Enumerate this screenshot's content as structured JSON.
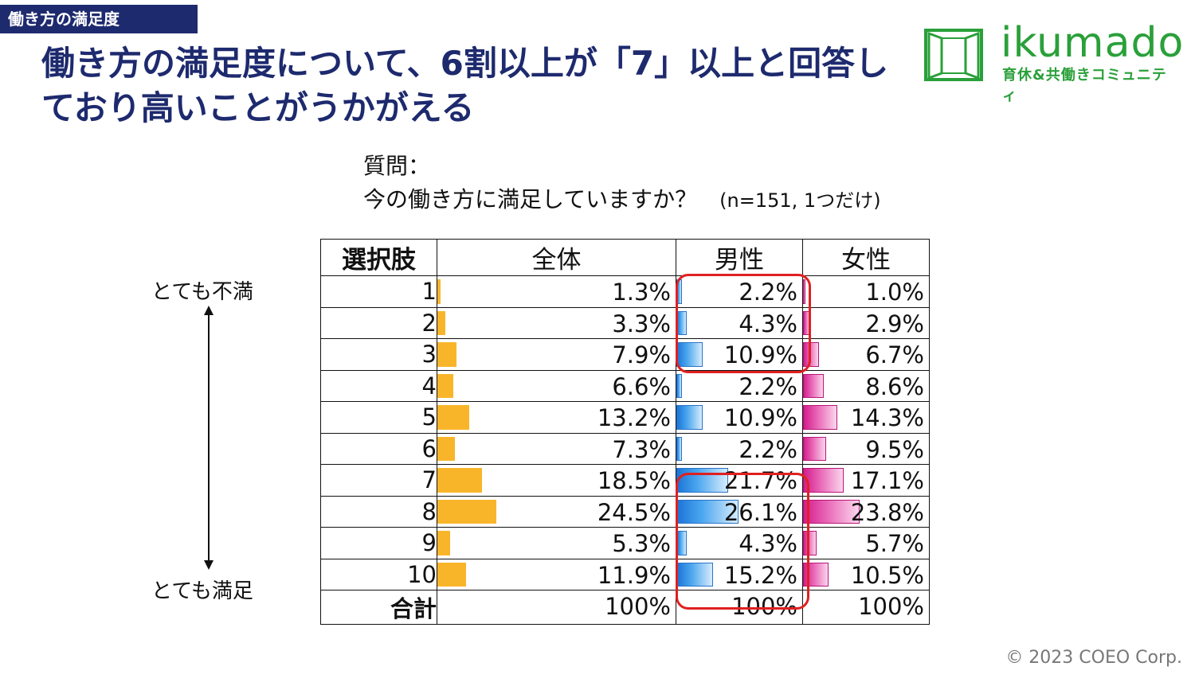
{
  "section_tag": "働き方の満足度",
  "headline": "働き方の満足度について、6割以上が「7」以上と回答しており高いことがうかがえる",
  "logo": {
    "word": "ikumado",
    "subtitle": "育休&共働きコミュニティ"
  },
  "question": {
    "label": "質問：",
    "text": "今の働き方に満足していますか？",
    "note": "(n=151, 1つだけ)"
  },
  "scale": {
    "top_label": "とても不満",
    "bottom_label": "とても満足"
  },
  "table": {
    "headers": {
      "choice": "選択肢",
      "all": "全体",
      "male": "男性",
      "female": "女性"
    },
    "rows": [
      {
        "choice": "1",
        "all": "1.3%",
        "male": "2.2%",
        "female": "1.0%",
        "all_v": 1.3,
        "male_v": 2.2,
        "female_v": 1.0
      },
      {
        "choice": "2",
        "all": "3.3%",
        "male": "4.3%",
        "female": "2.9%",
        "all_v": 3.3,
        "male_v": 4.3,
        "female_v": 2.9
      },
      {
        "choice": "3",
        "all": "7.9%",
        "male": "10.9%",
        "female": "6.7%",
        "all_v": 7.9,
        "male_v": 10.9,
        "female_v": 6.7
      },
      {
        "choice": "4",
        "all": "6.6%",
        "male": "2.2%",
        "female": "8.6%",
        "all_v": 6.6,
        "male_v": 2.2,
        "female_v": 8.6
      },
      {
        "choice": "5",
        "all": "13.2%",
        "male": "10.9%",
        "female": "14.3%",
        "all_v": 13.2,
        "male_v": 10.9,
        "female_v": 14.3
      },
      {
        "choice": "6",
        "all": "7.3%",
        "male": "2.2%",
        "female": "9.5%",
        "all_v": 7.3,
        "male_v": 2.2,
        "female_v": 9.5
      },
      {
        "choice": "7",
        "all": "18.5%",
        "male": "21.7%",
        "female": "17.1%",
        "all_v": 18.5,
        "male_v": 21.7,
        "female_v": 17.1
      },
      {
        "choice": "8",
        "all": "24.5%",
        "male": "26.1%",
        "female": "23.8%",
        "all_v": 24.5,
        "male_v": 26.1,
        "female_v": 23.8
      },
      {
        "choice": "9",
        "all": "5.3%",
        "male": "4.3%",
        "female": "5.7%",
        "all_v": 5.3,
        "male_v": 4.3,
        "female_v": 5.7
      },
      {
        "choice": "10",
        "all": "11.9%",
        "male": "15.2%",
        "female": "10.5%",
        "all_v": 11.9,
        "male_v": 15.2,
        "female_v": 10.5
      }
    ],
    "total": {
      "choice": "合計",
      "all": "100%",
      "male": "100%",
      "female": "100%"
    }
  },
  "colors": {
    "navy": "#1e2a6e",
    "brand_green": "#2aa03a",
    "bar_all": "#f9b52a",
    "bar_male": "#1c74d6",
    "bar_female": "#d41d8c",
    "highlight": "#e02020"
  },
  "copyright": "© 2023 COEO Corp."
}
